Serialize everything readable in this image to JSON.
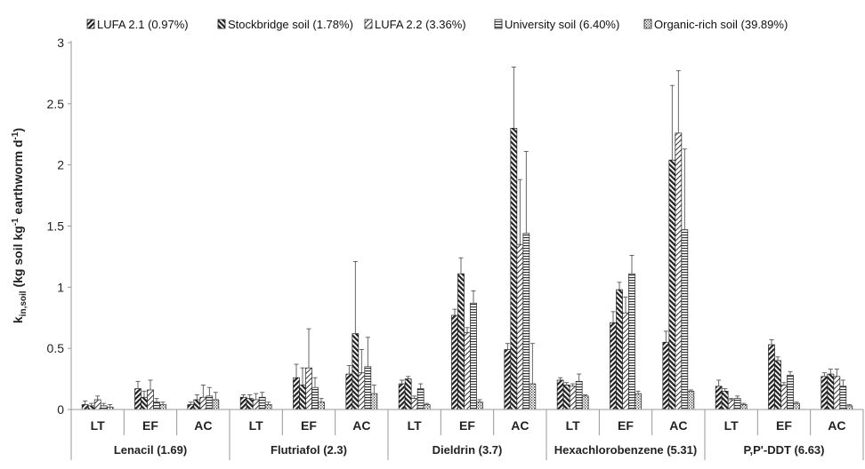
{
  "chart_data": {
    "type": "bar",
    "ylabel_parts": {
      "k": "k",
      "sub": "in,soil",
      "t1": " (kg soil kg",
      "sup1": "-1",
      "t2": " earthworm d",
      "sup2": "-1",
      "t3": ")"
    },
    "ylim": [
      0,
      3
    ],
    "yticks": [
      "0",
      "0.5",
      "1",
      "1.5",
      "2",
      "2.5",
      "3"
    ],
    "legend_position": "top",
    "grid": false,
    "series": [
      {
        "name": "LUFA 2.1 (0.97%)",
        "pattern": "diag-right-dense"
      },
      {
        "name": "Stockbridge soil  (1.78%)",
        "pattern": "diag-left-dense"
      },
      {
        "name": "LUFA 2.2 (3.36%)",
        "pattern": "diag-right-sparse"
      },
      {
        "name": "University soil (6.40%)",
        "pattern": "horizontal"
      },
      {
        "name": "Organic-rich soil (39.89%)",
        "pattern": "dots"
      }
    ],
    "groups": [
      {
        "name": "Lenacil (1.69)",
        "subgroups": [
          {
            "label": "LT",
            "values": [
              0.04,
              0.03,
              0.08,
              0.03,
              0.02
            ],
            "errors": [
              0.03,
              0.02,
              0.03,
              0.02,
              0.02
            ]
          },
          {
            "label": "EF",
            "values": [
              0.17,
              0.1,
              0.16,
              0.06,
              0.04
            ],
            "errors": [
              0.06,
              0.05,
              0.08,
              0.03,
              0.02
            ]
          },
          {
            "label": "AC",
            "values": [
              0.04,
              0.08,
              0.1,
              0.11,
              0.08
            ],
            "errors": [
              0.02,
              0.04,
              0.1,
              0.07,
              0.06
            ]
          }
        ]
      },
      {
        "name": "Flutriafol (2.3)",
        "subgroups": [
          {
            "label": "LT",
            "values": [
              0.1,
              0.09,
              0.08,
              0.1,
              0.04
            ],
            "errors": [
              0.02,
              0.03,
              0.05,
              0.04,
              0.02
            ]
          },
          {
            "label": "EF",
            "values": [
              0.26,
              0.2,
              0.34,
              0.18,
              0.06
            ],
            "errors": [
              0.11,
              0.14,
              0.32,
              0.08,
              0.03
            ]
          },
          {
            "label": "AC",
            "values": [
              0.29,
              0.62,
              0.3,
              0.35,
              0.13
            ],
            "errors": [
              0.07,
              0.59,
              0.19,
              0.24,
              0.07
            ]
          }
        ]
      },
      {
        "name": "Dieldrin (3.7)",
        "subgroups": [
          {
            "label": "LT",
            "values": [
              0.21,
              0.25,
              0.09,
              0.17,
              0.04
            ],
            "errors": [
              0.03,
              0.02,
              0.02,
              0.04,
              0.01
            ]
          },
          {
            "label": "EF",
            "values": [
              0.77,
              1.11,
              0.63,
              0.87,
              0.06
            ],
            "errors": [
              0.05,
              0.13,
              0.04,
              0.1,
              0.02
            ]
          },
          {
            "label": "AC",
            "values": [
              0.49,
              2.3,
              1.35,
              1.44,
              0.21
            ],
            "errors": [
              0.05,
              0.5,
              0.53,
              0.67,
              0.33
            ]
          }
        ]
      },
      {
        "name": "Hexachlorobenzene (5.31)",
        "subgroups": [
          {
            "label": "LT",
            "values": [
              0.24,
              0.2,
              0.19,
              0.23,
              0.11
            ],
            "errors": [
              0.02,
              0.02,
              0.02,
              0.06,
              0.01
            ]
          },
          {
            "label": "EF",
            "values": [
              0.71,
              0.98,
              0.79,
              1.11,
              0.13
            ],
            "errors": [
              0.09,
              0.06,
              0.13,
              0.15,
              0.02
            ]
          },
          {
            "label": "AC",
            "values": [
              0.55,
              2.04,
              2.26,
              1.47,
              0.15
            ],
            "errors": [
              0.09,
              0.61,
              0.51,
              0.66,
              0.01
            ]
          }
        ]
      },
      {
        "name": "P,P'-DDT (6.63)",
        "subgroups": [
          {
            "label": "LT",
            "values": [
              0.19,
              0.15,
              0.08,
              0.09,
              0.04
            ],
            "errors": [
              0.05,
              0.02,
              0.01,
              0.02,
              0.01
            ]
          },
          {
            "label": "EF",
            "values": [
              0.53,
              0.4,
              0.2,
              0.28,
              0.05
            ],
            "errors": [
              0.04,
              0.03,
              0.02,
              0.03,
              0.01
            ]
          },
          {
            "label": "AC",
            "values": [
              0.27,
              0.29,
              0.27,
              0.19,
              0.03
            ],
            "errors": [
              0.03,
              0.04,
              0.06,
              0.05,
              0.01
            ]
          }
        ]
      }
    ]
  }
}
